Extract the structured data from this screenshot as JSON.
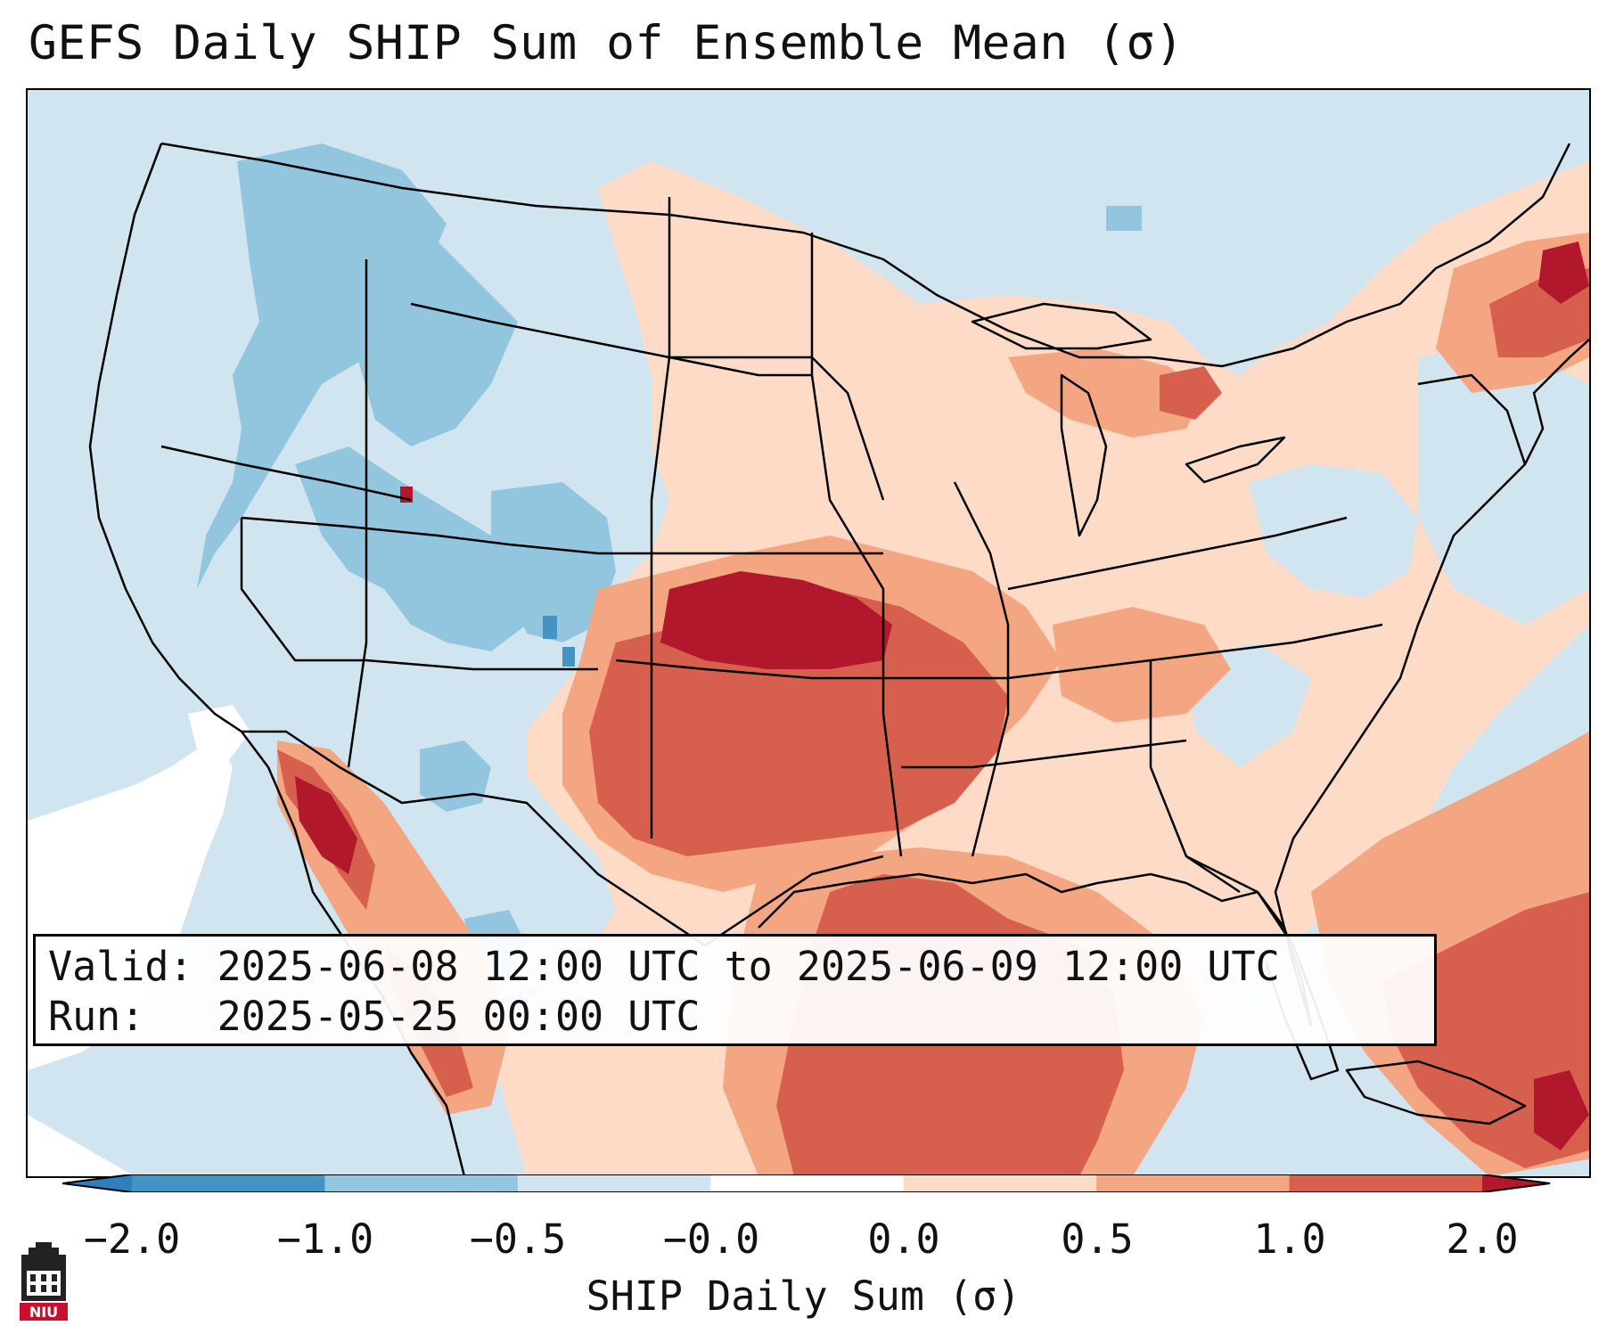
{
  "title": "GEFS Daily SHIP Sum of Ensemble Mean (σ)",
  "info": {
    "valid_line": "Valid: 2025-06-08 12:00 UTC to 2025-06-09 12:00 UTC",
    "run_line": "Run:   2025-05-25 00:00 UTC"
  },
  "colorbar": {
    "label": "SHIP Daily Sum (σ)",
    "tick_labels": [
      "−2.0",
      "−1.0",
      "−0.5",
      "−0.0",
      "0.0",
      "0.5",
      "1.0",
      "2.0"
    ],
    "bins": [
      {
        "range": "< -2.0",
        "color": "#2f7fbf"
      },
      {
        "range": "-2.0 to -1.0",
        "color": "#4393c3"
      },
      {
        "range": "-1.0 to -0.5",
        "color": "#92c5de"
      },
      {
        "range": "-0.5 to -0.0",
        "color": "#d1e5f0"
      },
      {
        "range": "-0.0 to 0.0",
        "color": "#ffffff"
      },
      {
        "range": "0.0 to 0.5",
        "color": "#fddbc7"
      },
      {
        "range": "0.5 to 1.0",
        "color": "#f4a582"
      },
      {
        "range": "1.0 to 2.0",
        "color": "#d6604d"
      },
      {
        "range": "> 2.0",
        "color": "#b2182b"
      }
    ]
  },
  "map": {
    "region": "Contiguous United States",
    "colors": {
      "neutral": "#ffffff",
      "light_blue": "#d1e5f0",
      "blue": "#92c5de",
      "dark_blue": "#4393c3",
      "light_red": "#fddbc7",
      "salmon": "#f4a582",
      "red": "#d6604d",
      "dark_red": "#b2182b"
    }
  },
  "logo": {
    "text": "NIU",
    "color": "#c8102e"
  }
}
